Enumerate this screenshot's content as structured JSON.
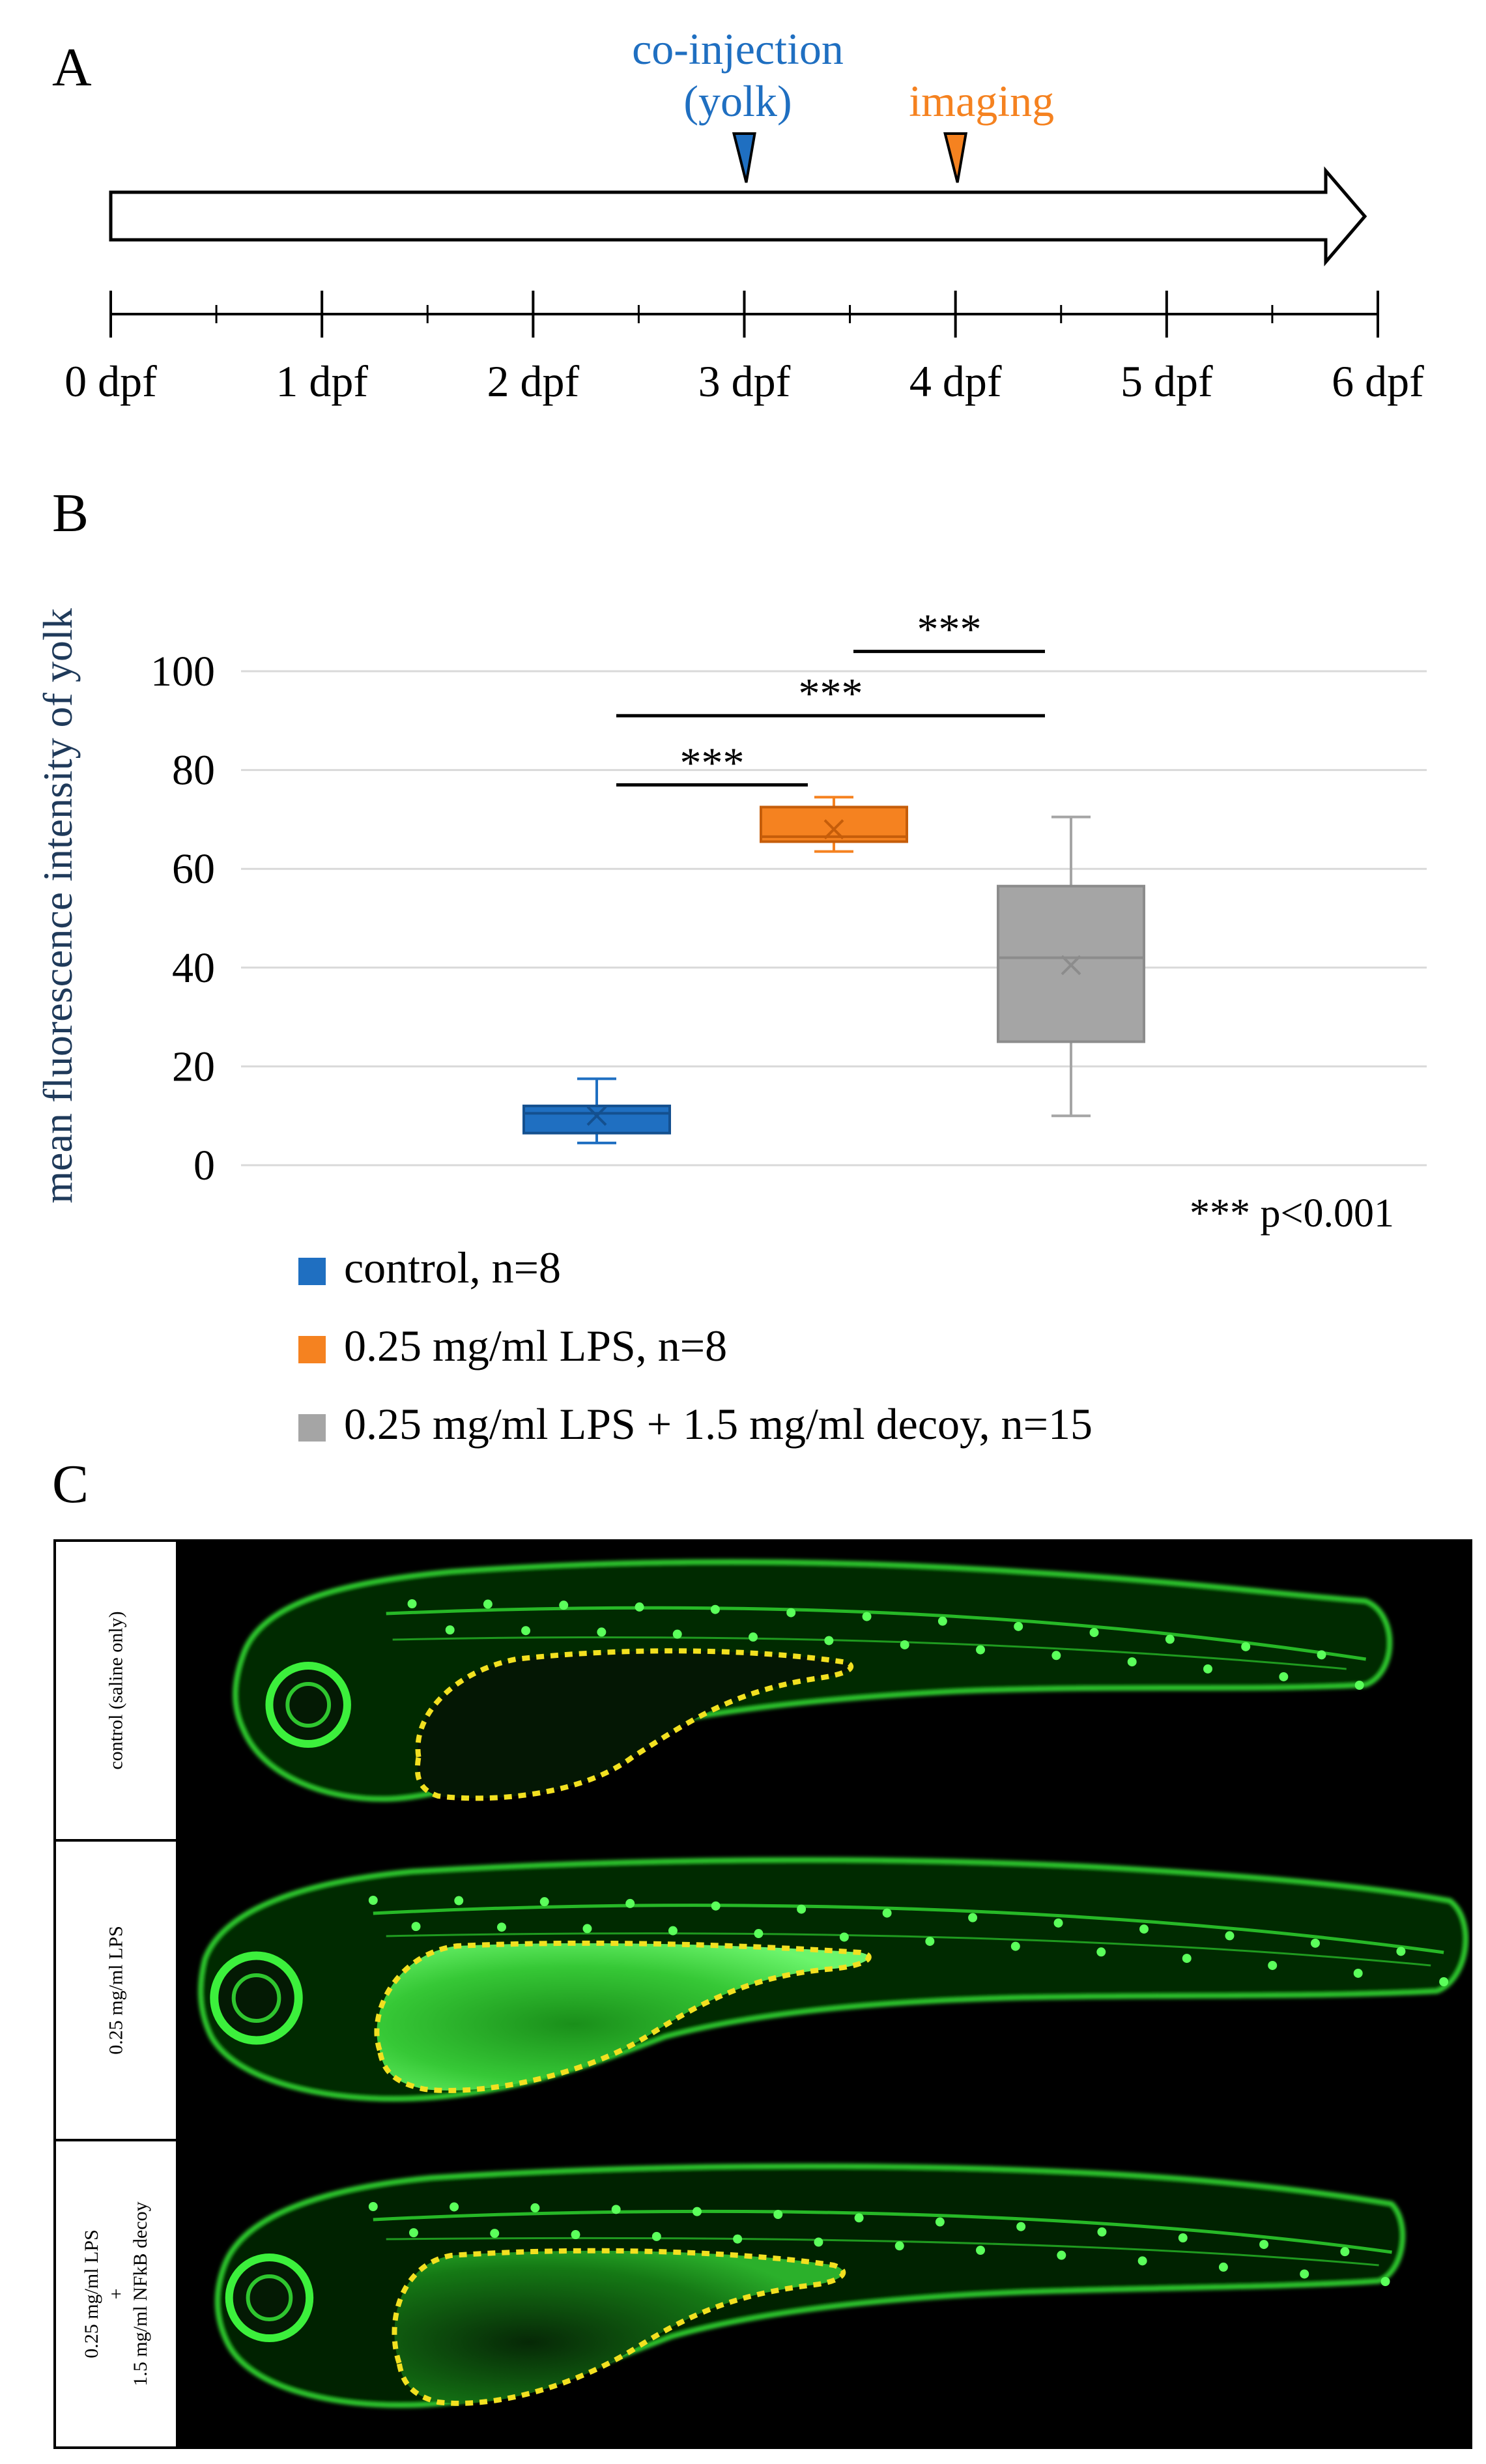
{
  "panels": {
    "a": "A",
    "b": "B",
    "c": "C"
  },
  "timeline": {
    "days": [
      "0 dpf",
      "1 dpf",
      "2 dpf",
      "3 dpf",
      "4 dpf",
      "5 dpf",
      "6 dpf"
    ],
    "events": [
      {
        "label_lines": [
          "co-injection",
          "(yolk)"
        ],
        "day": 3,
        "color": "#1f6fc1"
      },
      {
        "label_lines": [
          "imaging"
        ],
        "day": 4,
        "color": "#f58220"
      }
    ]
  },
  "chart_data": {
    "type": "box",
    "ylabel": "mean fluorescence intensity of yolk",
    "ylim": [
      0,
      100
    ],
    "yticks": [
      0,
      20,
      40,
      60,
      80,
      100
    ],
    "grid": true,
    "series": [
      {
        "name": "control, n=8",
        "color": "#1f6fc1",
        "min": 4.5,
        "q1": 6.5,
        "median": 10.5,
        "q3": 12,
        "max": 17.5,
        "mean": 10
      },
      {
        "name": "0.25 mg/ml LPS, n=8",
        "color": "#f58220",
        "min": 63.5,
        "q1": 65.5,
        "median": 66.5,
        "q3": 72.5,
        "max": 74.5,
        "mean": 68
      },
      {
        "name": "0.25 mg/ml LPS + 1.5 mg/ml decoy, n=15",
        "color": "#a5a5a5",
        "min": 10,
        "q1": 25,
        "median": 42,
        "q3": 56.5,
        "max": 70.5,
        "mean": 40.5
      }
    ],
    "significance": [
      {
        "from": 0,
        "to": 1,
        "label": "***",
        "y": 77
      },
      {
        "from": 0,
        "to": 2,
        "label": "***",
        "y": 91
      },
      {
        "from": 1,
        "to": 2,
        "label": "***",
        "y": 104
      }
    ],
    "note": "*** p<0.001",
    "legend": "bottom-left"
  },
  "micrographs": {
    "rows": [
      {
        "label_lines": [
          "control (saline only)"
        ]
      },
      {
        "label_lines": [
          "0.25 mg/ml LPS"
        ]
      },
      {
        "label_lines": [
          "0.25 mg/ml LPS",
          "+",
          "1.5 mg/ml NFkB decoy"
        ]
      }
    ]
  }
}
